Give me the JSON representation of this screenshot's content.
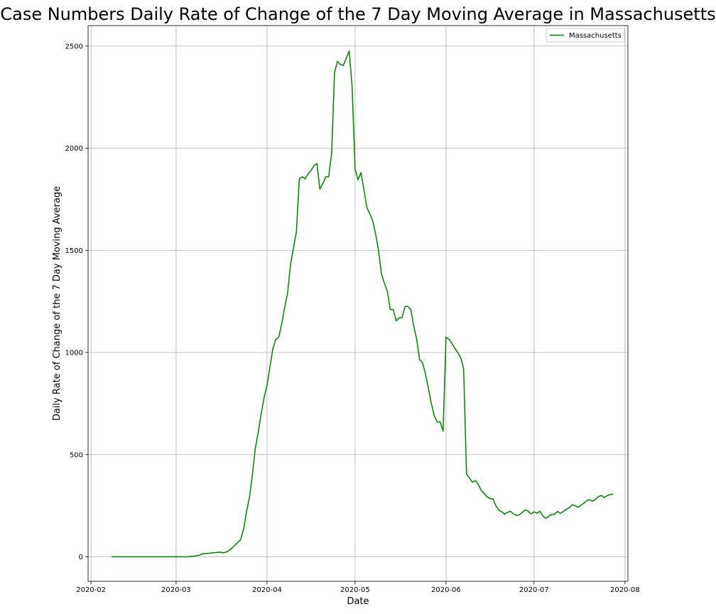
{
  "chart_data": {
    "type": "line",
    "title": "Case Numbers Daily Rate of Change of the 7 Day Moving Average in Massachusetts",
    "xlabel": "Date",
    "ylabel": "Daily Rate of Change of the 7 Day Moving Average",
    "x_ticks": [
      "2020-02",
      "2020-03",
      "2020-04",
      "2020-05",
      "2020-06",
      "2020-07",
      "2020-08"
    ],
    "y_ticks": [
      0,
      500,
      1000,
      1500,
      2000,
      2500
    ],
    "xlim": [
      "2020-01-31",
      "2020-08-02"
    ],
    "ylim": [
      -120,
      2600
    ],
    "grid": true,
    "legend_position": "top-right",
    "colors": {
      "line": "#008000",
      "grid": "#b0b0b0"
    },
    "series": [
      {
        "name": "Massachusetts",
        "points": [
          [
            "2020-02-08",
            0
          ],
          [
            "2020-02-15",
            0
          ],
          [
            "2020-02-22",
            0
          ],
          [
            "2020-03-01",
            0
          ],
          [
            "2020-03-05",
            0
          ],
          [
            "2020-03-07",
            3
          ],
          [
            "2020-03-09",
            8
          ],
          [
            "2020-03-10",
            15
          ],
          [
            "2020-03-12",
            17
          ],
          [
            "2020-03-14",
            20
          ],
          [
            "2020-03-16",
            23
          ],
          [
            "2020-03-17",
            19
          ],
          [
            "2020-03-18",
            23
          ],
          [
            "2020-03-19",
            30
          ],
          [
            "2020-03-20",
            42
          ],
          [
            "2020-03-21",
            56
          ],
          [
            "2020-03-22",
            70
          ],
          [
            "2020-03-23",
            84
          ],
          [
            "2020-03-24",
            135
          ],
          [
            "2020-03-25",
            220
          ],
          [
            "2020-03-26",
            290
          ],
          [
            "2020-03-27",
            400
          ],
          [
            "2020-03-28",
            530
          ],
          [
            "2020-03-29",
            610
          ],
          [
            "2020-03-30",
            700
          ],
          [
            "2020-03-31",
            780
          ],
          [
            "2020-04-01",
            840
          ],
          [
            "2020-04-02",
            930
          ],
          [
            "2020-04-03",
            1020
          ],
          [
            "2020-04-04",
            1065
          ],
          [
            "2020-04-05",
            1075
          ],
          [
            "2020-04-06",
            1140
          ],
          [
            "2020-04-07",
            1220
          ],
          [
            "2020-04-08",
            1290
          ],
          [
            "2020-04-09",
            1430
          ],
          [
            "2020-04-10",
            1510
          ],
          [
            "2020-04-11",
            1590
          ],
          [
            "2020-04-12",
            1850
          ],
          [
            "2020-04-13",
            1860
          ],
          [
            "2020-04-14",
            1850
          ],
          [
            "2020-04-15",
            1875
          ],
          [
            "2020-04-16",
            1890
          ],
          [
            "2020-04-17",
            1915
          ],
          [
            "2020-04-18",
            1925
          ],
          [
            "2020-04-19",
            1800
          ],
          [
            "2020-04-20",
            1825
          ],
          [
            "2020-04-21",
            1860
          ],
          [
            "2020-04-22",
            1860
          ],
          [
            "2020-04-23",
            1970
          ],
          [
            "2020-04-24",
            2370
          ],
          [
            "2020-04-25",
            2425
          ],
          [
            "2020-04-26",
            2410
          ],
          [
            "2020-04-27",
            2405
          ],
          [
            "2020-04-28",
            2440
          ],
          [
            "2020-04-29",
            2475
          ],
          [
            "2020-04-30",
            2300
          ],
          [
            "2020-05-01",
            1900
          ],
          [
            "2020-05-02",
            1845
          ],
          [
            "2020-05-03",
            1880
          ],
          [
            "2020-05-04",
            1800
          ],
          [
            "2020-05-05",
            1710
          ],
          [
            "2020-05-06",
            1680
          ],
          [
            "2020-05-07",
            1645
          ],
          [
            "2020-05-08",
            1580
          ],
          [
            "2020-05-09",
            1500
          ],
          [
            "2020-05-10",
            1385
          ],
          [
            "2020-05-11",
            1340
          ],
          [
            "2020-05-12",
            1300
          ],
          [
            "2020-05-13",
            1210
          ],
          [
            "2020-05-14",
            1210
          ],
          [
            "2020-05-15",
            1155
          ],
          [
            "2020-05-16",
            1170
          ],
          [
            "2020-05-17",
            1170
          ],
          [
            "2020-05-18",
            1225
          ],
          [
            "2020-05-19",
            1225
          ],
          [
            "2020-05-20",
            1210
          ],
          [
            "2020-05-21",
            1130
          ],
          [
            "2020-05-22",
            1065
          ],
          [
            "2020-05-23",
            965
          ],
          [
            "2020-05-24",
            950
          ],
          [
            "2020-05-25",
            895
          ],
          [
            "2020-05-26",
            825
          ],
          [
            "2020-05-27",
            750
          ],
          [
            "2020-05-28",
            690
          ],
          [
            "2020-05-29",
            660
          ],
          [
            "2020-05-30",
            660
          ],
          [
            "2020-05-31",
            615
          ],
          [
            "2020-06-01",
            1075
          ],
          [
            "2020-06-02",
            1065
          ],
          [
            "2020-06-03",
            1045
          ],
          [
            "2020-06-04",
            1020
          ],
          [
            "2020-06-05",
            1000
          ],
          [
            "2020-06-06",
            975
          ],
          [
            "2020-06-07",
            920
          ],
          [
            "2020-06-08",
            405
          ],
          [
            "2020-06-09",
            385
          ],
          [
            "2020-06-10",
            365
          ],
          [
            "2020-06-11",
            373
          ],
          [
            "2020-06-12",
            355
          ],
          [
            "2020-06-13",
            325
          ],
          [
            "2020-06-14",
            310
          ],
          [
            "2020-06-15",
            293
          ],
          [
            "2020-06-16",
            285
          ],
          [
            "2020-06-17",
            283
          ],
          [
            "2020-06-18",
            250
          ],
          [
            "2020-06-19",
            228
          ],
          [
            "2020-06-20",
            220
          ],
          [
            "2020-06-21",
            208
          ],
          [
            "2020-06-22",
            218
          ],
          [
            "2020-06-23",
            223
          ],
          [
            "2020-06-24",
            210
          ],
          [
            "2020-06-25",
            203
          ],
          [
            "2020-06-26",
            205
          ],
          [
            "2020-06-27",
            218
          ],
          [
            "2020-06-28",
            230
          ],
          [
            "2020-06-29",
            223
          ],
          [
            "2020-06-30",
            210
          ],
          [
            "2020-07-01",
            220
          ],
          [
            "2020-07-02",
            213
          ],
          [
            "2020-07-03",
            223
          ],
          [
            "2020-07-04",
            200
          ],
          [
            "2020-07-05",
            188
          ],
          [
            "2020-07-06",
            198
          ],
          [
            "2020-07-07",
            208
          ],
          [
            "2020-07-08",
            208
          ],
          [
            "2020-07-09",
            222
          ],
          [
            "2020-07-10",
            212
          ],
          [
            "2020-07-11",
            222
          ],
          [
            "2020-07-12",
            232
          ],
          [
            "2020-07-13",
            240
          ],
          [
            "2020-07-14",
            255
          ],
          [
            "2020-07-15",
            250
          ],
          [
            "2020-07-16",
            242
          ],
          [
            "2020-07-17",
            252
          ],
          [
            "2020-07-18",
            262
          ],
          [
            "2020-07-19",
            275
          ],
          [
            "2020-07-20",
            280
          ],
          [
            "2020-07-21",
            272
          ],
          [
            "2020-07-22",
            282
          ],
          [
            "2020-07-23",
            295
          ],
          [
            "2020-07-24",
            300
          ],
          [
            "2020-07-25",
            290
          ],
          [
            "2020-07-26",
            300
          ],
          [
            "2020-07-27",
            305
          ],
          [
            "2020-07-28",
            306
          ]
        ]
      }
    ]
  }
}
